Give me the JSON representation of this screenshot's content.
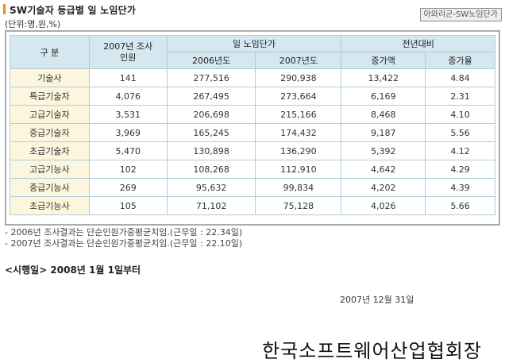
{
  "title": "SW기술자 등급별 일 노임단가",
  "tag": "아와리군-SW노임단가",
  "unit_note": "(단위:명,원,%)",
  "headers": {
    "category": "구 분",
    "surveyed": "2007년 조사인원",
    "wage_group": "일 노임단가",
    "wage_2006": "2006년도",
    "wage_2007": "2007년도",
    "change_group": "전년대비",
    "increase_amount": "증가액",
    "increase_rate": "증가율"
  },
  "rows": [
    {
      "category": "기술사",
      "surveyed": "141",
      "wage_2006": "277,516",
      "wage_2007": "290,938",
      "increase": "13,422",
      "rate": "4.84"
    },
    {
      "category": "특급기술자",
      "surveyed": "4,076",
      "wage_2006": "267,495",
      "wage_2007": "273,664",
      "increase": "6,169",
      "rate": "2.31"
    },
    {
      "category": "고급기술자",
      "surveyed": "3,531",
      "wage_2006": "206,698",
      "wage_2007": "215,166",
      "increase": "8,468",
      "rate": "4.10"
    },
    {
      "category": "중급기술자",
      "surveyed": "3,969",
      "wage_2006": "165,245",
      "wage_2007": "174,432",
      "increase": "9,187",
      "rate": "5.56"
    },
    {
      "category": "초급기술자",
      "surveyed": "5,470",
      "wage_2006": "130,898",
      "wage_2007": "136,290",
      "increase": "5,392",
      "rate": "4.12"
    },
    {
      "category": "고급기능사",
      "surveyed": "102",
      "wage_2006": "108,268",
      "wage_2007": "112,910",
      "increase": "4,642",
      "rate": "4.29"
    },
    {
      "category": "중급기능사",
      "surveyed": "269",
      "wage_2006": "95,632",
      "wage_2007": "99,834",
      "increase": "4,202",
      "rate": "4.39"
    },
    {
      "category": "초급기능사",
      "surveyed": "105",
      "wage_2006": "71,102",
      "wage_2007": "75,128",
      "increase": "4,026",
      "rate": "5.66"
    }
  ],
  "notes": [
    "- 2006년 조사결과는 단순인원가중평균치임.(근무일 : 22.34일)",
    "- 2007년 조사결과는 단순인원가중평균치임.(근무일 : 22.10일)"
  ],
  "effective": "<시행일> 2008년 1월 1일부터",
  "date": "2007년 12월 31일",
  "organization": "한국소프트웨어산업협회장",
  "colors": {
    "accent": "#e98a1e",
    "header_bg": "#d5e7ef",
    "category_bg": "#fdf6de",
    "grid": "#aeccd9"
  }
}
